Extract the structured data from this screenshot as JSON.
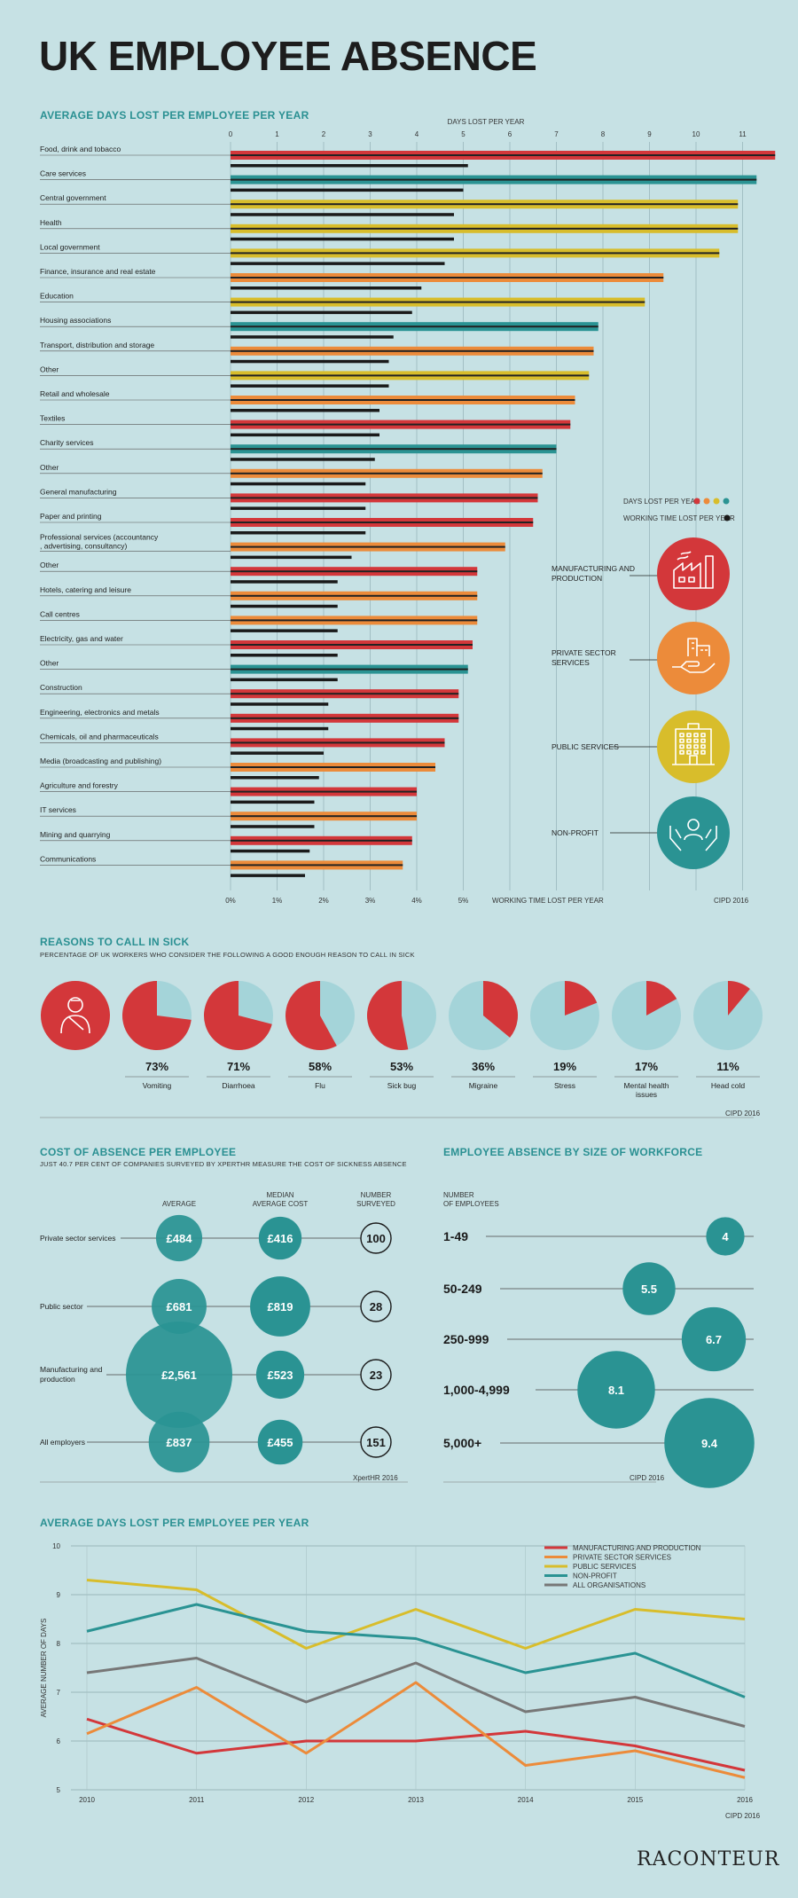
{
  "title": "UK EMPLOYEE ABSENCE",
  "colors": {
    "manufacturing": "#d3373a",
    "private": "#ec8b3a",
    "public": "#d8bd2b",
    "nonprofit": "#2a9393",
    "all": "#777777",
    "bg": "#c6e1e4"
  },
  "section1": {
    "title": "AVERAGE DAYS LOST PER EMPLOYEE PER YEAR",
    "top_axis_label": "DAYS LOST PER YEAR",
    "bottom_axis_label": "WORKING TIME LOST PER YEAR",
    "source": "CIPD 2016",
    "legend_days": "DAYS LOST PER YEAR",
    "legend_time": "WORKING TIME LOST PER YEAR",
    "sector_legend": [
      {
        "key": "manufacturing",
        "label": "MANUFACTURING AND PRODUCTION",
        "icon": "factory-icon"
      },
      {
        "key": "private",
        "label": "PRIVATE SECTOR SERVICES",
        "icon": "hand-buildings-icon"
      },
      {
        "key": "public",
        "label": "PUBLIC SERVICES",
        "icon": "office-building-icon"
      },
      {
        "key": "nonprofit",
        "label": "NON-PROFIT",
        "icon": "hands-person-icon"
      }
    ]
  },
  "chart_data": [
    {
      "type": "bar",
      "title": "AVERAGE DAYS LOST PER EMPLOYEE PER YEAR",
      "xlabel_top": "DAYS LOST PER YEAR",
      "xlabel_bottom": "WORKING TIME LOST PER YEAR",
      "x_ticks": [
        0,
        1,
        2,
        3,
        4,
        5,
        6,
        7,
        8,
        9,
        10,
        11
      ],
      "pct_ticks": [
        "0%",
        "1%",
        "2%",
        "3%",
        "4%",
        "5%"
      ],
      "xlim": [
        0,
        11.7
      ],
      "rows": [
        {
          "label": "Food, drink and tobacco",
          "sector": "manufacturing",
          "days": 11.7,
          "pct": 5.1
        },
        {
          "label": "Care services",
          "sector": "nonprofit",
          "days": 11.3,
          "pct": 5.0
        },
        {
          "label": "Central government",
          "sector": "public",
          "days": 10.9,
          "pct": 4.8
        },
        {
          "label": "Health",
          "sector": "public",
          "days": 10.9,
          "pct": 4.8
        },
        {
          "label": "Local government",
          "sector": "public",
          "days": 10.5,
          "pct": 4.6
        },
        {
          "label": "Finance, insurance and real estate",
          "sector": "private",
          "days": 9.3,
          "pct": 4.1
        },
        {
          "label": "Education",
          "sector": "public",
          "days": 8.9,
          "pct": 3.9
        },
        {
          "label": "Housing associations",
          "sector": "nonprofit",
          "days": 7.9,
          "pct": 3.5
        },
        {
          "label": "Transport, distribution and storage",
          "sector": "private",
          "days": 7.8,
          "pct": 3.4
        },
        {
          "label": "Other",
          "sector": "public",
          "days": 7.7,
          "pct": 3.4
        },
        {
          "label": "Retail and wholesale",
          "sector": "private",
          "days": 7.4,
          "pct": 3.2
        },
        {
          "label": "Textiles",
          "sector": "manufacturing",
          "days": 7.3,
          "pct": 3.2
        },
        {
          "label": "Charity services",
          "sector": "nonprofit",
          "days": 7.0,
          "pct": 3.1
        },
        {
          "label": "Other",
          "sector": "private",
          "days": 6.7,
          "pct": 2.9
        },
        {
          "label": "General manufacturing",
          "sector": "manufacturing",
          "days": 6.6,
          "pct": 2.9
        },
        {
          "label": "Paper and printing",
          "sector": "manufacturing",
          "days": 6.5,
          "pct": 2.9
        },
        {
          "label": "Professional services (accountancy, advertising, consultancy)",
          "sector": "private",
          "days": 5.9,
          "pct": 2.6
        },
        {
          "label": "Other",
          "sector": "manufacturing",
          "days": 5.3,
          "pct": 2.3
        },
        {
          "label": "Hotels, catering and leisure",
          "sector": "private",
          "days": 5.3,
          "pct": 2.3
        },
        {
          "label": "Call centres",
          "sector": "private",
          "days": 5.3,
          "pct": 2.3
        },
        {
          "label": "Electricity, gas and water",
          "sector": "manufacturing",
          "days": 5.2,
          "pct": 2.3
        },
        {
          "label": "Other",
          "sector": "nonprofit",
          "days": 5.1,
          "pct": 2.3
        },
        {
          "label": "Construction",
          "sector": "manufacturing",
          "days": 4.9,
          "pct": 2.1
        },
        {
          "label": "Engineering, electronics and metals",
          "sector": "manufacturing",
          "days": 4.9,
          "pct": 2.1
        },
        {
          "label": "Chemicals, oil and pharmaceuticals",
          "sector": "manufacturing",
          "days": 4.6,
          "pct": 2.0
        },
        {
          "label": "Media (broadcasting and publishing)",
          "sector": "private",
          "days": 4.4,
          "pct": 1.9
        },
        {
          "label": "Agriculture and forestry",
          "sector": "manufacturing",
          "days": 4.0,
          "pct": 1.8
        },
        {
          "label": "IT services",
          "sector": "private",
          "days": 4.0,
          "pct": 1.8
        },
        {
          "label": "Mining and quarrying",
          "sector": "manufacturing",
          "days": 3.9,
          "pct": 1.7
        },
        {
          "label": "Communications",
          "sector": "private",
          "days": 3.7,
          "pct": 1.6
        }
      ]
    },
    {
      "type": "pie",
      "title": "REASONS TO CALL IN SICK",
      "subtitle": "PERCENTAGE OF UK WORKERS WHO CONSIDER THE FOLLOWING A GOOD ENOUGH REASON TO CALL IN SICK",
      "source": "CIPD 2016",
      "items": [
        {
          "label": "Vomiting",
          "value": 73,
          "display": "73%"
        },
        {
          "label": "Diarrhoea",
          "value": 71,
          "display": "71%"
        },
        {
          "label": "Flu",
          "value": 58,
          "display": "58%"
        },
        {
          "label": "Sick bug",
          "value": 53,
          "display": "53%"
        },
        {
          "label": "Migraine",
          "value": 36,
          "display": "36%"
        },
        {
          "label": "Stress",
          "value": 19,
          "display": "19%"
        },
        {
          "label": "Mental health issues",
          "value": 17,
          "display": "17%"
        },
        {
          "label": "Head cold",
          "value": 11,
          "display": "11%"
        }
      ]
    },
    {
      "type": "table",
      "title": "COST OF ABSENCE PER EMPLOYEE",
      "subtitle": "JUST 40.7 PER CENT OF COMPANIES SURVEYED BY XPERTHR MEASURE THE COST OF SICKNESS ABSENCE",
      "source": "XpertHR 2016",
      "columns": [
        "AVERAGE",
        "MEDIAN AVERAGE COST",
        "NUMBER SURVEYED"
      ],
      "rows": [
        {
          "label": "Private sector services",
          "average": 484,
          "average_text": "£484",
          "median": 416,
          "median_text": "£416",
          "surveyed": "100"
        },
        {
          "label": "Public sector",
          "average": 681,
          "average_text": "£681",
          "median": 819,
          "median_text": "£819",
          "surveyed": "28"
        },
        {
          "label": "Manufacturing and production",
          "average": 2561,
          "average_text": "£2,561",
          "median": 523,
          "median_text": "£523",
          "surveyed": "23"
        },
        {
          "label": "All employers",
          "average": 837,
          "average_text": "£837",
          "median": 455,
          "median_text": "£455",
          "surveyed": "151"
        }
      ]
    },
    {
      "type": "bubble",
      "title": "EMPLOYEE ABSENCE BY SIZE OF WORKFORCE",
      "axis_label": "NUMBER OF EMPLOYEES",
      "source": "CIPD 2016",
      "rows": [
        {
          "label": "1-49",
          "value": 4,
          "display": "4"
        },
        {
          "label": "50-249",
          "value": 5.5,
          "display": "5.5"
        },
        {
          "label": "250-999",
          "value": 6.7,
          "display": "6.7"
        },
        {
          "label": "1,000-4,999",
          "value": 8.1,
          "display": "8.1"
        },
        {
          "label": "5,000+",
          "value": 9.4,
          "display": "9.4"
        }
      ]
    },
    {
      "type": "line",
      "title": "AVERAGE DAYS LOST PER EMPLOYEE PER YEAR",
      "ylabel": "AVERAGE NUMBER OF DAYS",
      "ylim": [
        5,
        10
      ],
      "y_ticks": [
        5,
        6,
        7,
        8,
        9,
        10
      ],
      "x": [
        "2010",
        "2011",
        "2012",
        "2013",
        "2014",
        "2015",
        "2016"
      ],
      "source": "CIPD 2016",
      "series": [
        {
          "name": "MANUFACTURING AND PRODUCTION",
          "key": "manufacturing",
          "values": [
            6.45,
            5.75,
            6.0,
            6.0,
            6.2,
            5.9,
            5.4
          ]
        },
        {
          "name": "PRIVATE SECTOR SERVICES",
          "key": "private",
          "values": [
            6.15,
            7.1,
            5.75,
            7.2,
            5.5,
            5.8,
            5.25
          ]
        },
        {
          "name": "PUBLIC SERVICES",
          "key": "public",
          "values": [
            9.3,
            9.1,
            7.9,
            8.7,
            7.9,
            8.7,
            8.5
          ]
        },
        {
          "name": "NON-PROFIT",
          "key": "nonprofit",
          "values": [
            8.25,
            8.8,
            8.25,
            8.1,
            7.4,
            7.8,
            6.9
          ]
        },
        {
          "name": "ALL ORGANISATIONS",
          "key": "all",
          "values": [
            7.4,
            7.7,
            6.8,
            7.6,
            6.6,
            6.9,
            6.3
          ]
        }
      ]
    }
  ],
  "brand": "RACONTEUR"
}
